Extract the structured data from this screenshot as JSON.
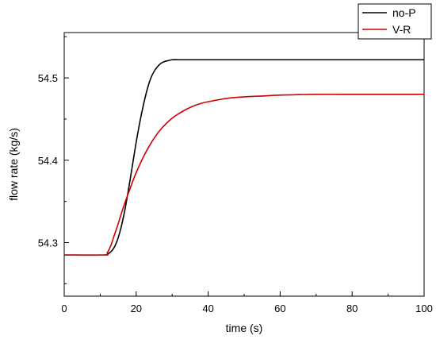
{
  "chart_data": {
    "type": "line",
    "title": "",
    "xlabel": "time (s)",
    "ylabel": "flow rate (kg/s)",
    "xlim": [
      0,
      100
    ],
    "ylim": [
      54.235,
      54.555
    ],
    "x_ticks": [
      0,
      20,
      40,
      60,
      80,
      100
    ],
    "y_ticks": [
      54.3,
      54.4,
      54.5
    ],
    "x_tick_labels": [
      "0",
      "20",
      "40",
      "60",
      "80",
      "100"
    ],
    "y_tick_labels": [
      "54.3",
      "54.4",
      "54.5"
    ],
    "grid": false,
    "legend": {
      "position": "top-right",
      "entries": [
        "no-P",
        "V-R"
      ]
    },
    "series": [
      {
        "name": "no-P",
        "color": "#000000",
        "x": [
          0,
          11,
          12,
          13,
          14,
          15,
          16,
          17,
          18,
          19,
          20,
          21,
          22,
          23,
          24,
          25,
          26,
          27,
          28,
          29,
          30,
          32,
          35,
          40,
          50,
          60,
          70,
          80,
          90,
          100
        ],
        "y": [
          54.285,
          54.285,
          54.286,
          54.289,
          54.295,
          54.306,
          54.322,
          54.343,
          54.368,
          54.395,
          54.422,
          54.446,
          54.467,
          54.485,
          54.499,
          54.508,
          54.514,
          54.518,
          54.52,
          54.521,
          54.522,
          54.522,
          54.522,
          54.522,
          54.522,
          54.522,
          54.522,
          54.522,
          54.522,
          54.522
        ]
      },
      {
        "name": "V-R",
        "color": "#cc0000",
        "x": [
          0,
          11,
          12,
          13,
          14,
          15,
          16,
          17,
          18,
          19,
          20,
          22,
          24,
          26,
          28,
          30,
          32,
          34,
          36,
          38,
          40,
          45,
          50,
          55,
          60,
          70,
          80,
          90,
          100
        ],
        "y": [
          54.285,
          54.285,
          54.288,
          54.297,
          54.31,
          54.323,
          54.337,
          54.35,
          54.362,
          54.374,
          54.385,
          54.404,
          54.42,
          54.433,
          54.443,
          54.451,
          54.457,
          54.462,
          54.466,
          54.469,
          54.471,
          54.475,
          54.477,
          54.478,
          54.479,
          54.48,
          54.48,
          54.48,
          54.48
        ]
      }
    ]
  }
}
